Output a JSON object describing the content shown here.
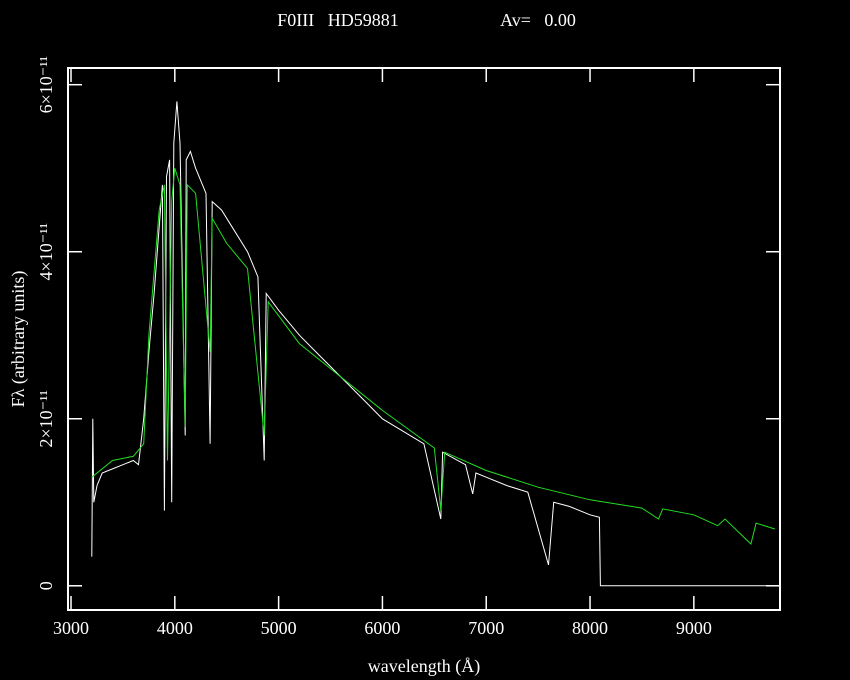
{
  "chart_data": {
    "type": "line",
    "title": "F0III   HD59881",
    "annotation": "Av=   0.00",
    "xlabel": "wavelength (Å)",
    "ylabel": "Fλ (arbitrary units)",
    "xlim": [
      2971,
      9830
    ],
    "ylim": [
      -2.9e-12,
      6.2e-11
    ],
    "xticks": [
      3000,
      4000,
      5000,
      6000,
      7000,
      8000,
      9000
    ],
    "yticks": [
      0,
      {
        "value": 2e-11,
        "label": "2×10⁻¹¹"
      },
      {
        "value": 4e-11,
        "label": "4×10⁻¹¹"
      },
      {
        "value": 6e-11,
        "label": "6×10⁻¹¹"
      }
    ],
    "series": [
      {
        "color": "#ffffff",
        "x": [
          3200,
          3210,
          3220,
          3250,
          3300,
          3400,
          3500,
          3600,
          3650,
          3700,
          3750,
          3800,
          3850,
          3880,
          3900,
          3920,
          3950,
          3970,
          3990,
          4020,
          4050,
          4100,
          4110,
          4150,
          4200,
          4300,
          4340,
          4360,
          4450,
          4550,
          4700,
          4800,
          4861,
          4880,
          5000,
          5200,
          5400,
          5600,
          5800,
          6000,
          6200,
          6400,
          6562,
          6580,
          6800,
          6870,
          6900,
          7000,
          7200,
          7400,
          7600,
          7650,
          7800,
          8000,
          8090,
          8100,
          9780
        ],
        "values": [
          3.5e-12,
          2e-11,
          1e-11,
          1.2e-11,
          1.35e-11,
          1.4e-11,
          1.45e-11,
          1.5e-11,
          1.45e-11,
          2e-11,
          2.8e-11,
          3.5e-11,
          4.3e-11,
          4.8e-11,
          9e-12,
          4.9e-11,
          5.1e-11,
          1e-11,
          5.3e-11,
          5.8e-11,
          5.3e-11,
          1.8e-11,
          5.1e-11,
          5.2e-11,
          5e-11,
          4.7e-11,
          1.7e-11,
          4.6e-11,
          4.5e-11,
          4.3e-11,
          4e-11,
          3.7e-11,
          1.5e-11,
          3.5e-11,
          3.3e-11,
          3e-11,
          2.75e-11,
          2.5e-11,
          2.25e-11,
          2e-11,
          1.85e-11,
          1.7e-11,
          8e-12,
          1.6e-11,
          1.45e-11,
          1.1e-11,
          1.35e-11,
          1.3e-11,
          1.2e-11,
          1.12e-11,
          2.5e-12,
          1e-11,
          9.5e-12,
          8.5e-12,
          8.2e-12,
          0,
          0
        ]
      },
      {
        "color": "#22dd22",
        "x": [
          3200,
          3400,
          3600,
          3700,
          3750,
          3850,
          3900,
          3930,
          3970,
          4000,
          4050,
          4100,
          4120,
          4200,
          4340,
          4360,
          4500,
          4700,
          4861,
          4900,
          5200,
          5500,
          6000,
          6500,
          6562,
          6600,
          7000,
          7500,
          8000,
          8500,
          8660,
          8700,
          9000,
          9230,
          9300,
          9550,
          9600,
          9780
        ],
        "values": [
          1.3e-11,
          1.5e-11,
          1.55e-11,
          1.7e-11,
          3e-11,
          4.5e-11,
          4.8e-11,
          1.5e-11,
          4.6e-11,
          5e-11,
          4.8e-11,
          1.9e-11,
          4.8e-11,
          4.7e-11,
          2.8e-11,
          4.4e-11,
          4.1e-11,
          3.8e-11,
          1.8e-11,
          3.4e-11,
          2.9e-11,
          2.6e-11,
          2.1e-11,
          1.65e-11,
          9e-12,
          1.6e-11,
          1.38e-11,
          1.18e-11,
          1.03e-11,
          9.3e-12,
          8e-12,
          9.2e-12,
          8.5e-12,
          7.2e-12,
          8e-12,
          5e-12,
          7.5e-12,
          6.8e-12
        ]
      }
    ]
  }
}
